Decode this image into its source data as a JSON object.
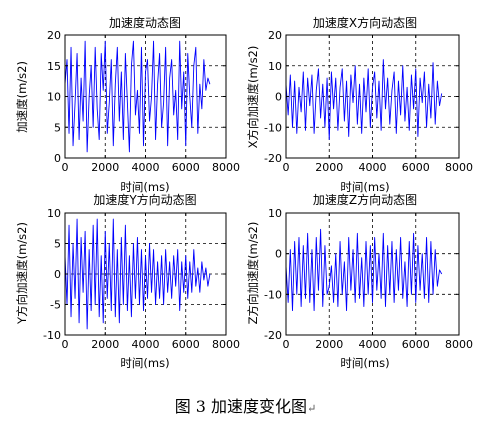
{
  "figure_caption": "图 3  加速度变化图",
  "caption_mark": "↵",
  "line_color": "#0000ff",
  "chart_data": [
    {
      "type": "line",
      "title": "加速度动态图",
      "xlabel": "时间(ms)",
      "ylabel": "加速度(m/s2)",
      "xlim": [
        0,
        8000
      ],
      "ylim": [
        0,
        20
      ],
      "xticks": [
        0,
        2000,
        4000,
        6000,
        8000
      ],
      "yticks": [
        0,
        5,
        10,
        15,
        20
      ],
      "xtick_labels": [
        "0",
        "2000",
        "4000",
        "6000",
        "8000"
      ],
      "ytick_labels": [
        "0",
        "5",
        "10",
        "15",
        "20"
      ],
      "grid": true,
      "series": [
        {
          "x": [
            0,
            100,
            200,
            300,
            400,
            500,
            600,
            700,
            800,
            900,
            1000,
            1100,
            1200,
            1300,
            1400,
            1500,
            1600,
            1700,
            1800,
            1900,
            2000,
            2100,
            2200,
            2300,
            2400,
            2500,
            2600,
            2700,
            2800,
            2900,
            3000,
            3100,
            3200,
            3300,
            3400,
            3500,
            3600,
            3700,
            3800,
            3900,
            4000,
            4100,
            4200,
            4300,
            4400,
            4500,
            4600,
            4700,
            4800,
            4900,
            5000,
            5100,
            5200,
            5300,
            5400,
            5500,
            5600,
            5700,
            5800,
            5900,
            6000,
            6100,
            6200,
            6300,
            6400,
            6500,
            6600,
            6700,
            6800,
            6900,
            7000,
            7100,
            7200
          ],
          "y": [
            12,
            16,
            4,
            18,
            2,
            9,
            17,
            3,
            13,
            6,
            19,
            1,
            10,
            15,
            5,
            18,
            8,
            3,
            17,
            11,
            19,
            4,
            9,
            16,
            2,
            12,
            18,
            6,
            14,
            3,
            17,
            9,
            1,
            15,
            19,
            7,
            11,
            4,
            18,
            2,
            14,
            16,
            6,
            10,
            19,
            3,
            12,
            17,
            5,
            9,
            18,
            2,
            13,
            16,
            7,
            11,
            3,
            19,
            8,
            14,
            2,
            17,
            10,
            5,
            15,
            18,
            4,
            12,
            8,
            16,
            11,
            13,
            12
          ]
        }
      ]
    },
    {
      "type": "line",
      "title": "加速度X方向动态图",
      "xlabel": "时间(ms)",
      "ylabel": "X方向加速度(m/s2)",
      "xlim": [
        0,
        8000
      ],
      "ylim": [
        -20,
        20
      ],
      "xticks": [
        0,
        2000,
        4000,
        6000,
        8000
      ],
      "yticks": [
        -20,
        -10,
        0,
        10,
        20
      ],
      "xtick_labels": [
        "0",
        "2000",
        "4000",
        "6000",
        "8000"
      ],
      "ytick_labels": [
        "-20",
        "-10",
        "0",
        "10",
        "20"
      ],
      "grid": true,
      "series": [
        {
          "x": [
            0,
            100,
            200,
            300,
            400,
            500,
            600,
            700,
            800,
            900,
            1000,
            1100,
            1200,
            1300,
            1400,
            1500,
            1600,
            1700,
            1800,
            1900,
            2000,
            2100,
            2200,
            2300,
            2400,
            2500,
            2600,
            2700,
            2800,
            2900,
            3000,
            3100,
            3200,
            3300,
            3400,
            3500,
            3600,
            3700,
            3800,
            3900,
            4000,
            4100,
            4200,
            4300,
            4400,
            4500,
            4600,
            4700,
            4800,
            4900,
            5000,
            5100,
            5200,
            5300,
            5400,
            5500,
            5600,
            5700,
            5800,
            5900,
            6000,
            6100,
            6200,
            6300,
            6400,
            6500,
            6600,
            6700,
            6800,
            6900,
            7000,
            7100,
            7200
          ],
          "y": [
            4,
            -6,
            7,
            -10,
            5,
            -12,
            3,
            -5,
            8,
            -11,
            6,
            -3,
            7,
            -12,
            2,
            9,
            -7,
            4,
            -10,
            6,
            -14,
            8,
            -4,
            6,
            -11,
            3,
            9,
            -8,
            5,
            -13,
            7,
            -2,
            10,
            -9,
            4,
            -12,
            6,
            -5,
            9,
            -10,
            3,
            8,
            -7,
            5,
            -11,
            12,
            -4,
            6,
            -9,
            2,
            8,
            -12,
            5,
            -6,
            10,
            -8,
            3,
            -11,
            7,
            -4,
            9,
            -13,
            6,
            -2,
            8,
            -10,
            4,
            -7,
            11,
            -9,
            5,
            -3,
            1
          ]
        }
      ]
    },
    {
      "type": "line",
      "title": "加速度Y方向动态图",
      "xlabel": "时间(ms)",
      "ylabel": "Y方向加速度(m/s2)",
      "xlim": [
        0,
        8000
      ],
      "ylim": [
        -10,
        10
      ],
      "xticks": [
        0,
        2000,
        4000,
        6000,
        8000
      ],
      "yticks": [
        -10,
        -5,
        0,
        5,
        10
      ],
      "xtick_labels": [
        "0",
        "2000",
        "4000",
        "6000",
        "8000"
      ],
      "ytick_labels": [
        "-10",
        "-5",
        "0",
        "5",
        "10"
      ],
      "grid": true,
      "series": [
        {
          "x": [
            0,
            100,
            200,
            300,
            400,
            500,
            600,
            700,
            800,
            900,
            1000,
            1100,
            1200,
            1300,
            1400,
            1500,
            1600,
            1700,
            1800,
            1900,
            2000,
            2100,
            2200,
            2300,
            2400,
            2500,
            2600,
            2700,
            2800,
            2900,
            3000,
            3100,
            3200,
            3300,
            3400,
            3500,
            3600,
            3700,
            3800,
            3900,
            4000,
            4100,
            4200,
            4300,
            4400,
            4500,
            4600,
            4700,
            4800,
            4900,
            5000,
            5100,
            5200,
            5300,
            5400,
            5500,
            5600,
            5700,
            5800,
            5900,
            6000,
            6100,
            6200,
            6300,
            6400,
            6500,
            6600,
            6700,
            6800,
            6900,
            7000,
            7100,
            7200
          ],
          "y": [
            3,
            -5,
            8,
            -7,
            5,
            -4,
            9,
            -8,
            6,
            -3,
            7,
            -9,
            4,
            -6,
            8,
            -5,
            9,
            -7,
            3,
            -8,
            7,
            -4,
            5,
            -6,
            9,
            -7,
            4,
            -8,
            6,
            -5,
            8,
            -6,
            3,
            -7,
            5,
            -4,
            6,
            -5,
            4,
            -6,
            3,
            -4,
            5,
            -3,
            4,
            -5,
            2,
            -4,
            3,
            -5,
            4,
            -3,
            2,
            -4,
            3,
            -2,
            4,
            -6,
            2,
            -3,
            3,
            -4,
            2,
            -3,
            4,
            -2,
            1,
            -3,
            2,
            -1,
            1,
            -2,
            0
          ]
        }
      ]
    },
    {
      "type": "line",
      "title": "加速度Z方向动态图",
      "xlabel": "时间(ms)",
      "ylabel": "Z方向加速度(m/s2)",
      "xlim": [
        0,
        8000
      ],
      "ylim": [
        -20,
        10
      ],
      "xticks": [
        0,
        2000,
        4000,
        6000,
        8000
      ],
      "yticks": [
        -20,
        -10,
        0,
        10
      ],
      "xtick_labels": [
        "0",
        "2000",
        "4000",
        "6000",
        "8000"
      ],
      "ytick_labels": [
        "-20",
        "-10",
        "0",
        "10"
      ],
      "grid": true,
      "series": [
        {
          "x": [
            0,
            100,
            200,
            300,
            400,
            500,
            600,
            700,
            800,
            900,
            1000,
            1100,
            1200,
            1300,
            1400,
            1500,
            1600,
            1700,
            1800,
            1900,
            2000,
            2100,
            2200,
            2300,
            2400,
            2500,
            2600,
            2700,
            2800,
            2900,
            3000,
            3100,
            3200,
            3300,
            3400,
            3500,
            3600,
            3700,
            3800,
            3900,
            4000,
            4100,
            4200,
            4300,
            4400,
            4500,
            4600,
            4700,
            4800,
            4900,
            5000,
            5100,
            5200,
            5300,
            5400,
            5500,
            5600,
            5700,
            5800,
            5900,
            6000,
            6100,
            6200,
            6300,
            6400,
            6500,
            6600,
            6700,
            6800,
            6900,
            7000,
            7100,
            7200
          ],
          "y": [
            -3,
            -12,
            1,
            -14,
            3,
            -10,
            4,
            -13,
            2,
            -11,
            5,
            -12,
            1,
            -14,
            4,
            -9,
            6,
            -13,
            2,
            -10,
            -8,
            -3,
            -12,
            0,
            -13,
            3,
            -10,
            -2,
            -14,
            4,
            -9,
            1,
            -12,
            5,
            -11,
            -1,
            -13,
            3,
            -10,
            2,
            -12,
            4,
            -9,
            0,
            -11,
            5,
            -13,
            2,
            -10,
            3,
            -12,
            1,
            -9,
            4,
            -11,
            -2,
            -13,
            3,
            -10,
            5,
            -12,
            2,
            -9,
            0,
            -11,
            4,
            -12,
            3,
            -10,
            1,
            -8,
            -4,
            -5
          ]
        }
      ]
    }
  ]
}
